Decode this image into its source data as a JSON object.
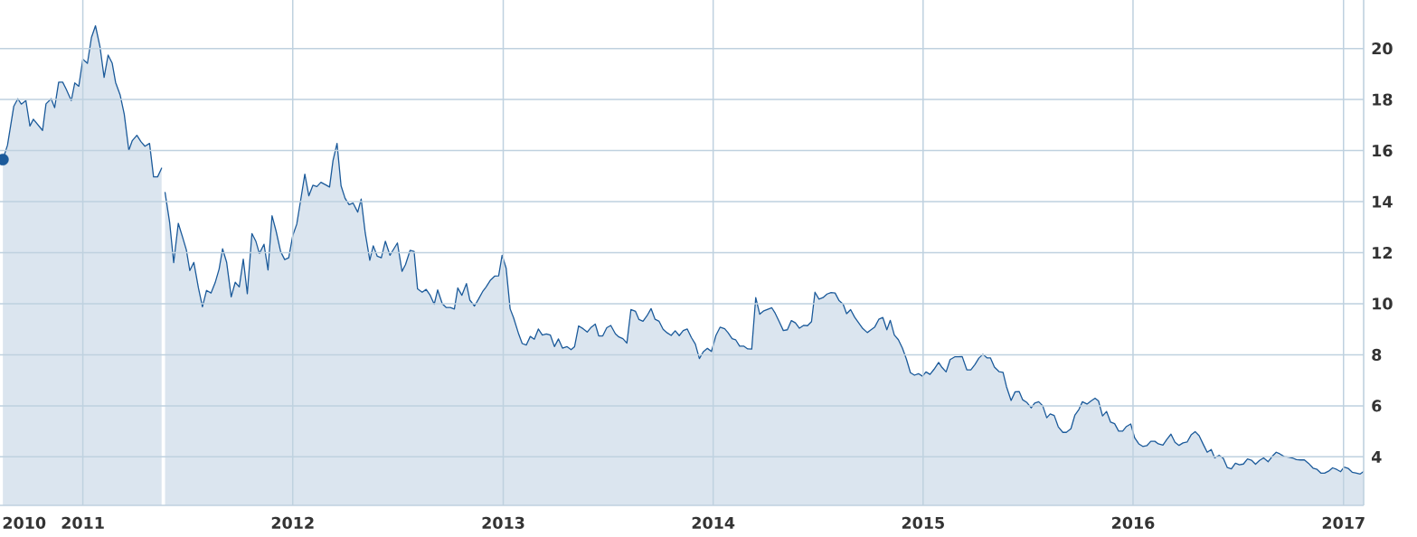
{
  "chart_data": {
    "type": "area",
    "xlim": [
      "2010-08-10",
      "2017-02-05"
    ],
    "ylim": [
      2.1,
      21.9
    ],
    "xticks": [
      {
        "value": "2010-09-21",
        "label": "2010"
      },
      "2011",
      "2012",
      "2013",
      "2014",
      "2015",
      "2016",
      "2017"
    ],
    "yticks": [
      4,
      6,
      8,
      10,
      12,
      14,
      16,
      18,
      20
    ],
    "grid": true,
    "series": [
      {
        "color": "#1b5a9a",
        "x": [
          "2010-08-15",
          "2010-08-23",
          "2010-09-03",
          "2010-09-10",
          "2010-09-16",
          "2010-09-24",
          "2010-10-01",
          "2010-10-07",
          "2010-10-23",
          "2010-10-29",
          "2010-11-07",
          "2010-11-13",
          "2010-11-20",
          "2010-11-27",
          "2010-12-03",
          "2010-12-12",
          "2010-12-18",
          "2010-12-25",
          "2011-01-01",
          "2011-01-09",
          "2011-01-16",
          "2011-01-23",
          "2011-01-31",
          "2011-02-07",
          "2011-02-14",
          "2011-02-21",
          "2011-02-27",
          "2011-03-07",
          "2011-03-14",
          "2011-03-22",
          "2011-03-28",
          "2011-04-05",
          "2011-04-12",
          "2011-04-19",
          "2011-04-27",
          "2011-05-04",
          "2011-05-11",
          "2011-05-18",
          "2011-05-21",
          "2011-05-24",
          "2011-06-01",
          "2011-06-08",
          "2011-06-16",
          "2011-06-23",
          "2011-06-30",
          "2011-07-06",
          "2011-07-13",
          "2011-07-21",
          "2011-07-28",
          "2011-08-04",
          "2011-08-12",
          "2011-08-19",
          "2011-08-26",
          "2011-09-01",
          "2011-09-08",
          "2011-09-16",
          "2011-09-23",
          "2011-09-30",
          "2011-10-07",
          "2011-10-14",
          "2011-10-22",
          "2011-10-29",
          "2011-11-04",
          "2011-11-12",
          "2011-11-19",
          "2011-11-26",
          "2011-12-03",
          "2011-12-11",
          "2011-12-18",
          "2011-12-25",
          "2012-01-01",
          "2012-01-08",
          "2012-01-15",
          "2012-01-22",
          "2012-01-29",
          "2012-02-05",
          "2012-02-12",
          "2012-02-19",
          "2012-02-27",
          "2012-03-05",
          "2012-03-11",
          "2012-03-18",
          "2012-03-25",
          "2012-04-01",
          "2012-04-08",
          "2012-04-15",
          "2012-04-23",
          "2012-04-29",
          "2012-05-06",
          "2012-05-14",
          "2012-05-20",
          "2012-05-27",
          "2012-06-03",
          "2012-06-10",
          "2012-06-18",
          "2012-06-25",
          "2012-07-01",
          "2012-07-09",
          "2012-07-15",
          "2012-07-23",
          "2012-07-30",
          "2012-08-05",
          "2012-08-13",
          "2012-08-20",
          "2012-08-27",
          "2012-09-03",
          "2012-09-09",
          "2012-09-17",
          "2012-09-24",
          "2012-10-01",
          "2012-10-08",
          "2012-10-14",
          "2012-10-21",
          "2012-10-29",
          "2012-11-04",
          "2012-11-12",
          "2012-11-19",
          "2012-11-26",
          "2012-12-02",
          "2012-12-10",
          "2012-12-17",
          "2012-12-24",
          "2012-12-30",
          "2013-01-06",
          "2013-01-13",
          "2013-01-19",
          "2013-01-28",
          "2013-02-03",
          "2013-02-10",
          "2013-02-17",
          "2013-02-24",
          "2013-03-03",
          "2013-03-10",
          "2013-03-17",
          "2013-03-24",
          "2013-03-31",
          "2013-04-07",
          "2013-04-14",
          "2013-04-22",
          "2013-04-29",
          "2013-05-05",
          "2013-05-12",
          "2013-05-20",
          "2013-05-27",
          "2013-06-03",
          "2013-06-10",
          "2013-06-16",
          "2013-06-23",
          "2013-06-30",
          "2013-07-07",
          "2013-07-15",
          "2013-07-21",
          "2013-07-28",
          "2013-08-04",
          "2013-08-11",
          "2013-08-19",
          "2013-08-25",
          "2013-09-01",
          "2013-09-08",
          "2013-09-15",
          "2013-09-22",
          "2013-09-29",
          "2013-10-06",
          "2013-10-13",
          "2013-10-20",
          "2013-10-27",
          "2013-11-03",
          "2013-11-10",
          "2013-11-17",
          "2013-11-24",
          "2013-12-01",
          "2013-12-08",
          "2013-12-15",
          "2013-12-22",
          "2013-12-29",
          "2014-01-06",
          "2014-01-13",
          "2014-01-21",
          "2014-01-27",
          "2014-02-03",
          "2014-02-09",
          "2014-02-16",
          "2014-02-23",
          "2014-03-02",
          "2014-03-09",
          "2014-03-16",
          "2014-03-23",
          "2014-03-30",
          "2014-04-06",
          "2014-04-13",
          "2014-04-19",
          "2014-04-26",
          "2014-05-03",
          "2014-05-10",
          "2014-05-17",
          "2014-05-24",
          "2014-05-31",
          "2014-06-07",
          "2014-06-14",
          "2014-06-21",
          "2014-06-27",
          "2014-07-04",
          "2014-07-11",
          "2014-07-18",
          "2014-07-25",
          "2014-08-01",
          "2014-08-08",
          "2014-08-15",
          "2014-08-21",
          "2014-08-28",
          "2014-09-04",
          "2014-09-11",
          "2014-09-18",
          "2014-09-26",
          "2014-10-02",
          "2014-10-09",
          "2014-10-16",
          "2014-10-23",
          "2014-10-30",
          "2014-11-05",
          "2014-11-12",
          "2014-11-19",
          "2014-11-26",
          "2014-12-03",
          "2014-12-10",
          "2014-12-17",
          "2014-12-24",
          "2014-12-31",
          "2015-01-06",
          "2015-01-13",
          "2015-01-20",
          "2015-01-28",
          "2015-02-03",
          "2015-02-10",
          "2015-02-17",
          "2015-02-25",
          "2015-03-03",
          "2015-03-10",
          "2015-03-18",
          "2015-03-25",
          "2015-04-01",
          "2015-04-08",
          "2015-04-15",
          "2015-04-22",
          "2015-04-28",
          "2015-05-05",
          "2015-05-13",
          "2015-05-20",
          "2015-05-26",
          "2015-06-03",
          "2015-06-10",
          "2015-06-17",
          "2015-06-23",
          "2015-06-30",
          "2015-07-08",
          "2015-07-14",
          "2015-07-21",
          "2015-07-28",
          "2015-08-04",
          "2015-08-10",
          "2015-08-17",
          "2015-08-24",
          "2015-09-01",
          "2015-09-07",
          "2015-09-15",
          "2015-09-22",
          "2015-09-29",
          "2015-10-05",
          "2015-10-13",
          "2015-10-20",
          "2015-10-27",
          "2015-11-02",
          "2015-11-09",
          "2015-11-16",
          "2015-11-23",
          "2015-11-30",
          "2015-12-07",
          "2015-12-14",
          "2015-12-20",
          "2015-12-28",
          "2016-01-04",
          "2016-01-11",
          "2016-01-18",
          "2016-01-25",
          "2016-02-01",
          "2016-02-08",
          "2016-02-14",
          "2016-02-22",
          "2016-02-29",
          "2016-03-07",
          "2016-03-14",
          "2016-03-21",
          "2016-03-28",
          "2016-04-04",
          "2016-04-11",
          "2016-04-18",
          "2016-04-25",
          "2016-05-03",
          "2016-05-09",
          "2016-05-16",
          "2016-05-22",
          "2016-05-30",
          "2016-06-06",
          "2016-06-13",
          "2016-06-20",
          "2016-06-27",
          "2016-07-04",
          "2016-07-11",
          "2016-07-18",
          "2016-07-25",
          "2016-08-01",
          "2016-08-08",
          "2016-08-15",
          "2016-08-23",
          "2016-08-30",
          "2016-09-06",
          "2016-09-12",
          "2016-09-20",
          "2016-09-27",
          "2016-10-04",
          "2016-10-11",
          "2016-10-18",
          "2016-10-25",
          "2016-11-01",
          "2016-11-09",
          "2016-11-16",
          "2016-11-23",
          "2016-11-29",
          "2016-12-06",
          "2016-12-13",
          "2016-12-20",
          "2016-12-27",
          "2017-01-02",
          "2017-01-09",
          "2017-01-16",
          "2017-01-22",
          "2017-01-30",
          "2017-02-05"
        ],
        "values": [
          15.65,
          16.21,
          17.74,
          18.03,
          17.82,
          17.96,
          16.96,
          17.23,
          16.79,
          17.83,
          18.03,
          17.68,
          18.68,
          18.68,
          18.41,
          17.96,
          18.65,
          18.52,
          19.58,
          19.42,
          20.43,
          20.89,
          20.05,
          18.87,
          19.74,
          19.43,
          18.67,
          18.17,
          17.43,
          16.01,
          16.39,
          16.6,
          16.35,
          16.17,
          16.28,
          14.97,
          14.97,
          15.31,
          null,
          14.36,
          13.18,
          11.61,
          13.15,
          12.64,
          12.11,
          11.3,
          11.62,
          10.62,
          9.88,
          10.52,
          10.42,
          10.82,
          11.36,
          12.15,
          11.63,
          10.27,
          10.84,
          10.66,
          11.75,
          10.39,
          12.75,
          12.44,
          11.97,
          12.33,
          11.32,
          13.45,
          12.85,
          12.04,
          11.73,
          11.8,
          12.67,
          13.12,
          14.09,
          15.08,
          14.23,
          14.64,
          14.59,
          14.76,
          14.66,
          14.57,
          15.61,
          16.28,
          14.62,
          14.13,
          13.88,
          13.94,
          13.59,
          14.1,
          12.78,
          11.7,
          12.27,
          11.86,
          11.8,
          12.45,
          11.9,
          12.16,
          12.38,
          11.27,
          11.53,
          12.09,
          12.05,
          10.58,
          10.45,
          10.56,
          10.33,
          9.98,
          10.54,
          10.0,
          9.85,
          9.85,
          9.79,
          10.62,
          10.33,
          10.79,
          10.14,
          9.91,
          10.18,
          10.47,
          10.65,
          10.93,
          11.08,
          11.09,
          11.9,
          11.4,
          9.8,
          9.45,
          8.8,
          8.44,
          8.38,
          8.72,
          8.61,
          9.01,
          8.77,
          8.82,
          8.77,
          8.32,
          8.62,
          8.26,
          8.32,
          8.2,
          8.32,
          9.13,
          9.02,
          8.89,
          9.08,
          9.2,
          8.74,
          8.74,
          9.06,
          9.15,
          8.82,
          8.7,
          8.63,
          8.46,
          9.77,
          9.7,
          9.38,
          9.31,
          9.53,
          9.81,
          9.39,
          9.31,
          9.0,
          8.86,
          8.76,
          8.94,
          8.75,
          8.95,
          9.01,
          8.68,
          8.42,
          7.85,
          8.12,
          8.25,
          8.13,
          8.77,
          9.08,
          9.02,
          8.86,
          8.63,
          8.59,
          8.34,
          8.34,
          8.23,
          8.22,
          10.24,
          9.59,
          9.72,
          9.78,
          9.84,
          9.62,
          9.29,
          8.95,
          8.98,
          9.34,
          9.25,
          9.04,
          9.15,
          9.14,
          9.3,
          10.45,
          10.18,
          10.24,
          10.38,
          10.44,
          10.42,
          10.12,
          9.98,
          9.61,
          9.77,
          9.47,
          9.25,
          9.03,
          8.87,
          8.97,
          9.09,
          9.39,
          9.46,
          8.98,
          9.35,
          8.77,
          8.59,
          8.26,
          7.83,
          7.3,
          7.2,
          7.26,
          7.16,
          7.33,
          7.23,
          7.43,
          7.7,
          7.5,
          7.33,
          7.81,
          7.92,
          7.92,
          7.93,
          7.41,
          7.41,
          7.61,
          7.87,
          8.02,
          7.88,
          7.88,
          7.52,
          7.34,
          7.31,
          6.75,
          6.21,
          6.55,
          6.56,
          6.24,
          6.14,
          5.92,
          6.11,
          6.16,
          6.0,
          5.53,
          5.68,
          5.62,
          5.18,
          4.96,
          4.96,
          5.1,
          5.64,
          5.86,
          6.16,
          6.07,
          6.19,
          6.3,
          6.19,
          5.6,
          5.78,
          5.36,
          5.3,
          5.01,
          5.01,
          5.18,
          5.29,
          4.74,
          4.51,
          4.41,
          4.44,
          4.61,
          4.61,
          4.51,
          4.46,
          4.69,
          4.89,
          4.57,
          4.45,
          4.55,
          4.58,
          4.86,
          4.99,
          4.83,
          4.45,
          4.18,
          4.29,
          3.96,
          4.06,
          3.94,
          3.58,
          3.53,
          3.75,
          3.69,
          3.72,
          3.92,
          3.87,
          3.71,
          3.86,
          3.96,
          3.81,
          4.02,
          4.18,
          4.12,
          4.01,
          3.99,
          3.96,
          3.89,
          3.88,
          3.88,
          3.75,
          3.56,
          3.51,
          3.36,
          3.36,
          3.44,
          3.57,
          3.51,
          3.42,
          3.6,
          3.55,
          3.4,
          3.37,
          3.33,
          3.43
        ]
      },
      {
        "type": "scatter",
        "marker": "circle",
        "color": "#1b5a9a",
        "x": [
          "2010-08-15"
        ],
        "values": [
          15.65
        ]
      }
    ]
  }
}
